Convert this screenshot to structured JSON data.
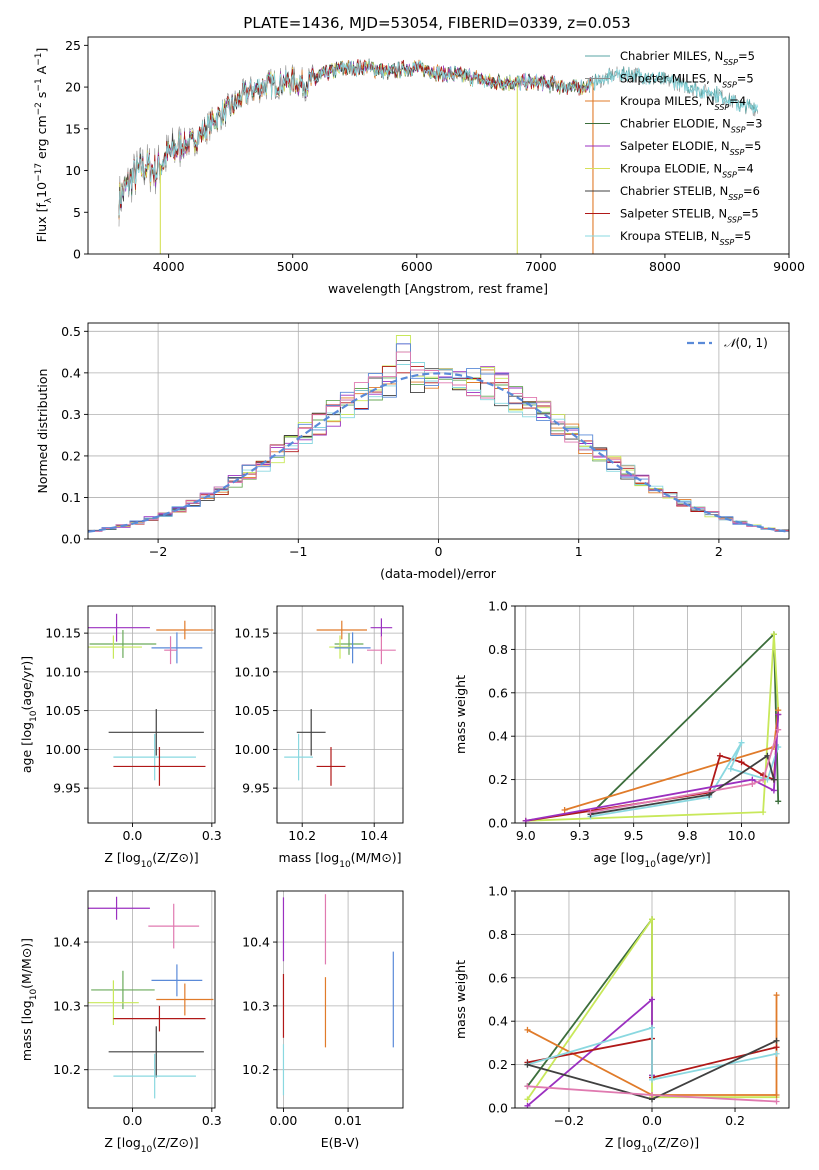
{
  "figure_title": "PLATE=1436, MJD=53054, FIBERID=0339, z=0.053",
  "colors": {
    "chabrier_miles": "#5aa5a5",
    "salpeter_miles": "#8c8c8c",
    "kroupa_miles": "#e07b2a",
    "chabrier_elodie": "#3c6e3c",
    "salpeter_elodie": "#9b30c0",
    "kroupa_elodie": "#d6e05a",
    "chabrier_stelib": "#404040",
    "salpeter_stelib": "#b01818",
    "kroupa_stelib": "#8ad8e0",
    "extra_pink": "#e07ab0",
    "extra_blue": "#5a8ad8",
    "extra_green": "#6aaa5a",
    "extra_lime": "#c8e85a",
    "normal_curve": "#5a8ad8"
  },
  "chart_data": [
    {
      "id": "spectrum",
      "type": "line",
      "title": "PLATE=1436, MJD=53054, FIBERID=0339, z=0.053",
      "xlabel": "wavelength [Angstrom, rest frame]",
      "ylabel": "Flux [fλ10⁻¹⁷ erg cm⁻² s⁻¹ A⁻¹]",
      "xlim": [
        3350,
        9000
      ],
      "ylim": [
        0,
        26
      ],
      "xticks": [
        4000,
        5000,
        6000,
        7000,
        8000,
        9000
      ],
      "yticks": [
        0,
        5,
        10,
        15,
        20,
        25
      ],
      "legend_position": "top-right",
      "series": [
        {
          "name": "Chabrier MILES, N_SSP=5",
          "label_main": "Chabrier MILES, N",
          "sub": "SSP",
          "label_tail": "=5",
          "color": "#5aa5a5"
        },
        {
          "name": "Salpeter MILES, N_SSP=5",
          "label_main": "Salpeter MILES, N",
          "sub": "SSP",
          "label_tail": "=5",
          "color": "#8c8c8c"
        },
        {
          "name": "Kroupa MILES, N_SSP=4",
          "label_main": "Kroupa MILES, N",
          "sub": "SSP",
          "label_tail": "=4",
          "color": "#e07b2a"
        },
        {
          "name": "Chabrier ELODIE, N_SSP=3",
          "label_main": "Chabrier ELODIE, N",
          "sub": "SSP",
          "label_tail": "=3",
          "color": "#3c6e3c"
        },
        {
          "name": "Salpeter ELODIE, N_SSP=5",
          "label_main": "Salpeter ELODIE, N",
          "sub": "SSP",
          "label_tail": "=5",
          "color": "#9b30c0"
        },
        {
          "name": "Kroupa ELODIE, N_SSP=4",
          "label_main": "Kroupa ELODIE, N",
          "sub": "SSP",
          "label_tail": "=4",
          "color": "#d6e05a"
        },
        {
          "name": "Chabrier STELIB, N_SSP=6",
          "label_main": "Chabrier STELIB, N",
          "sub": "SSP",
          "label_tail": "=6",
          "color": "#404040"
        },
        {
          "name": "Salpeter STELIB, N_SSP=5",
          "label_main": "Salpeter STELIB, N",
          "sub": "SSP",
          "label_tail": "=5",
          "color": "#b01818"
        },
        {
          "name": "Kroupa STELIB, N_SSP=5",
          "label_main": "Kroupa STELIB, N",
          "sub": "SSP",
          "label_tail": "=5",
          "color": "#8ad8e0"
        }
      ],
      "continuum": {
        "x": [
          3600,
          3700,
          3800,
          3900,
          4000,
          4100,
          4200,
          4300,
          4400,
          4500,
          4600,
          4700,
          4800,
          4900,
          5000,
          5100,
          5200,
          5300,
          5400,
          5500,
          5600,
          5700,
          5800,
          5900,
          6000,
          6100,
          6200,
          6300,
          6400,
          6500,
          6600,
          6700,
          6800,
          6900,
          7000,
          7100,
          7200,
          7300,
          7400,
          7500,
          7600,
          7700,
          7800,
          7900,
          8000,
          8100,
          8200,
          8300,
          8400,
          8500,
          8600,
          8700
        ],
        "y": [
          6.5,
          9.0,
          10.5,
          10.0,
          12.0,
          13.0,
          13.5,
          15.0,
          16.5,
          17.5,
          19.0,
          19.8,
          20.3,
          20.5,
          20.8,
          20.3,
          21.2,
          21.8,
          22.2,
          22.3,
          22.4,
          22.0,
          21.8,
          22.2,
          22.3,
          22.0,
          21.6,
          21.5,
          21.3,
          21.0,
          20.5,
          20.6,
          20.5,
          20.6,
          20.5,
          20.3,
          20.1,
          19.9,
          20.3,
          21.0,
          21.5,
          21.5,
          21.5,
          21.0,
          20.8,
          20.5,
          20.0,
          19.5,
          19.2,
          18.5,
          18.0,
          17.5
        ]
      },
      "dips": [
        {
          "x": 3933,
          "y": 0
        },
        {
          "x": 6810,
          "y": 20.5
        },
        {
          "x": 7420,
          "y": 0
        }
      ]
    },
    {
      "id": "residuals",
      "type": "histogram",
      "xlabel": "(data-model)/error",
      "ylabel": "Normed distribution",
      "xlim": [
        -2.5,
        2.5
      ],
      "ylim": [
        0,
        0.52
      ],
      "xticks": [
        -2,
        -1,
        0,
        1,
        2
      ],
      "yticks": [
        0.0,
        0.1,
        0.2,
        0.3,
        0.4,
        0.5
      ],
      "bin_width": 0.1,
      "normal_curve_label": "N(0, 1)",
      "legend_position": "top-right",
      "peak_values": [
        0.42,
        0.47,
        0.45,
        0.49,
        0.43,
        0.4
      ]
    },
    {
      "id": "age_vs_Z",
      "type": "errorbar",
      "xlabel": "Z [log10(Z/Z⊙)]",
      "ylabel": "age  [log10(age/yr)]",
      "xlim": [
        -0.14,
        0.26
      ],
      "ylim": [
        9.905,
        10.185
      ],
      "xticks": [
        0.0,
        0.25
      ],
      "yticks": [
        9.95,
        10.0,
        10.05,
        10.1,
        10.15
      ],
      "points": [
        {
          "x": -0.05,
          "y": 10.157,
          "xerr": 0.105,
          "yerr": 0.018,
          "color": "#9b30c0"
        },
        {
          "x": 0.165,
          "y": 10.154,
          "xerr": 0.09,
          "yerr": 0.012,
          "color": "#e07b2a"
        },
        {
          "x": -0.03,
          "y": 10.136,
          "xerr": 0.105,
          "yerr": 0.018,
          "color": "#6aaa5a"
        },
        {
          "x": -0.06,
          "y": 10.132,
          "xerr": 0.09,
          "yerr": 0.015,
          "color": "#c8e85a"
        },
        {
          "x": 0.14,
          "y": 10.131,
          "xerr": 0.08,
          "yerr": 0.02,
          "color": "#5a8ad8"
        },
        {
          "x": 0.12,
          "y": 10.128,
          "xerr": 0.02,
          "yerr": 0.018,
          "color": "#e07ab0"
        },
        {
          "x": 0.075,
          "y": 10.022,
          "xerr": 0.15,
          "yerr": 0.03,
          "color": "#404040"
        },
        {
          "x": 0.07,
          "y": 9.99,
          "xerr": 0.13,
          "yerr": 0.03,
          "color": "#8ad8e0"
        },
        {
          "x": 0.085,
          "y": 9.978,
          "xerr": 0.145,
          "yerr": 0.025,
          "color": "#b01818"
        }
      ]
    },
    {
      "id": "age_vs_mass",
      "type": "errorbar",
      "xlabel": "mass [log10(M/M⊙)]",
      "ylabel": "",
      "xlim": [
        10.13,
        10.48
      ],
      "ylim": [
        9.905,
        10.185
      ],
      "xticks": [
        10.2,
        10.4
      ],
      "yticks": [
        9.95,
        10.0,
        10.05,
        10.1,
        10.15
      ],
      "points": [
        {
          "x": 10.42,
          "y": 10.157,
          "xerr": 0.03,
          "yerr": 0.012,
          "color": "#9b30c0"
        },
        {
          "x": 10.31,
          "y": 10.154,
          "xerr": 0.07,
          "yerr": 0.012,
          "color": "#e07b2a"
        },
        {
          "x": 10.33,
          "y": 10.136,
          "xerr": 0.04,
          "yerr": 0.014,
          "color": "#6aaa5a"
        },
        {
          "x": 10.305,
          "y": 10.132,
          "xerr": 0.03,
          "yerr": 0.015,
          "color": "#c8e85a"
        },
        {
          "x": 10.34,
          "y": 10.131,
          "xerr": 0.05,
          "yerr": 0.02,
          "color": "#5a8ad8"
        },
        {
          "x": 10.42,
          "y": 10.128,
          "xerr": 0.04,
          "yerr": 0.018,
          "color": "#e07ab0"
        },
        {
          "x": 10.225,
          "y": 10.022,
          "xerr": 0.04,
          "yerr": 0.03,
          "color": "#404040"
        },
        {
          "x": 10.19,
          "y": 9.99,
          "xerr": 0.04,
          "yerr": 0.03,
          "color": "#8ad8e0"
        },
        {
          "x": 10.28,
          "y": 9.978,
          "xerr": 0.04,
          "yerr": 0.025,
          "color": "#b01818"
        }
      ]
    },
    {
      "id": "weight_vs_age",
      "type": "line",
      "xlabel": "age  [log10(age/yr)]",
      "ylabel": "mass weight",
      "xlim": [
        8.95,
        10.22
      ],
      "ylim": [
        0,
        1.0
      ],
      "xticks": [
        9.0,
        9.25,
        9.5,
        9.75,
        10.0
      ],
      "yticks": [
        0.0,
        0.2,
        0.4,
        0.6,
        0.8,
        1.0
      ],
      "series": [
        {
          "color": "#3c6e3c",
          "x": [
            9.3,
            10.15,
            10.17
          ],
          "y": [
            0.04,
            0.87,
            0.1
          ]
        },
        {
          "color": "#c8e85a",
          "x": [
            9.0,
            10.1,
            10.15,
            10.17
          ],
          "y": [
            0.01,
            0.05,
            0.87,
            0.52
          ]
        },
        {
          "color": "#e07b2a",
          "x": [
            9.18,
            10.15,
            10.17
          ],
          "y": [
            0.06,
            0.35,
            0.52
          ]
        },
        {
          "color": "#b01818",
          "x": [
            9.0,
            9.85,
            9.9,
            10.0,
            10.1,
            10.15,
            10.17
          ],
          "y": [
            0.01,
            0.14,
            0.31,
            0.28,
            0.22,
            0.2,
            0.5
          ]
        },
        {
          "color": "#8ad8e0",
          "x": [
            9.3,
            9.85,
            10.0,
            9.95,
            10.12,
            10.17
          ],
          "y": [
            0.03,
            0.12,
            0.37,
            0.25,
            0.2,
            0.35
          ]
        },
        {
          "color": "#9b30c0",
          "x": [
            9.0,
            10.05,
            10.15,
            10.17
          ],
          "y": [
            0.01,
            0.2,
            0.15,
            0.5
          ]
        },
        {
          "color": "#404040",
          "x": [
            9.3,
            9.85,
            10.12,
            10.15
          ],
          "y": [
            0.04,
            0.13,
            0.31,
            0.2
          ]
        },
        {
          "color": "#e07ab0",
          "x": [
            9.3,
            10.05,
            10.1,
            10.17
          ],
          "y": [
            0.05,
            0.18,
            0.2,
            0.43
          ]
        }
      ]
    },
    {
      "id": "mass_vs_Z",
      "type": "errorbar",
      "xlabel": "Z [log10(Z/Z⊙)]",
      "ylabel": "mass [log10(M/M⊙)]",
      "xlim": [
        -0.14,
        0.26
      ],
      "ylim": [
        10.14,
        10.48
      ],
      "xticks": [
        0.0,
        0.25
      ],
      "yticks": [
        10.2,
        10.3,
        10.4
      ],
      "points": [
        {
          "x": -0.05,
          "y": 10.453,
          "xerr": 0.105,
          "yerr": 0.018,
          "color": "#9b30c0"
        },
        {
          "x": 0.13,
          "y": 10.425,
          "xerr": 0.08,
          "yerr": 0.035,
          "color": "#e07ab0"
        },
        {
          "x": 0.14,
          "y": 10.34,
          "xerr": 0.08,
          "yerr": 0.025,
          "color": "#5a8ad8"
        },
        {
          "x": -0.03,
          "y": 10.325,
          "xerr": 0.1,
          "yerr": 0.03,
          "color": "#6aaa5a"
        },
        {
          "x": 0.165,
          "y": 10.31,
          "xerr": 0.09,
          "yerr": 0.025,
          "color": "#e07b2a"
        },
        {
          "x": -0.06,
          "y": 10.305,
          "xerr": 0.08,
          "yerr": 0.035,
          "color": "#c8e85a"
        },
        {
          "x": 0.085,
          "y": 10.28,
          "xerr": 0.145,
          "yerr": 0.02,
          "color": "#b01818"
        },
        {
          "x": 0.075,
          "y": 10.228,
          "xerr": 0.15,
          "yerr": 0.04,
          "color": "#404040"
        },
        {
          "x": 0.07,
          "y": 10.19,
          "xerr": 0.13,
          "yerr": 0.035,
          "color": "#8ad8e0"
        }
      ]
    },
    {
      "id": "mass_vs_ebv",
      "type": "errorbar",
      "xlabel": "E(B-V)",
      "ylabel": "",
      "xlim": [
        -0.001,
        0.0185
      ],
      "ylim": [
        10.14,
        10.48
      ],
      "xticks": [
        0.0,
        0.01
      ],
      "yticks": [
        10.2,
        10.3,
        10.4
      ],
      "points": [
        {
          "x": 0.0,
          "y": 10.42,
          "xerr": 0,
          "yerr": 0.05,
          "color": "#9b30c0"
        },
        {
          "x": 0.0,
          "y": 10.3,
          "xerr": 0,
          "yerr": 0.05,
          "color": "#b01818"
        },
        {
          "x": 0.0,
          "y": 10.2,
          "xerr": 0,
          "yerr": 0.04,
          "color": "#8ad8e0"
        },
        {
          "x": 0.0065,
          "y": 10.42,
          "xerr": 0,
          "yerr": 0.055,
          "color": "#e07ab0"
        },
        {
          "x": 0.0065,
          "y": 10.29,
          "xerr": 0,
          "yerr": 0.055,
          "color": "#e07b2a"
        },
        {
          "x": 0.017,
          "y": 10.31,
          "xerr": 0,
          "yerr": 0.075,
          "color": "#5a8ad8"
        }
      ]
    },
    {
      "id": "weight_vs_Z",
      "type": "line",
      "xlabel": "Z [log10(Z/Z⊙)]",
      "ylabel": "mass weight",
      "xlim": [
        -0.33,
        0.33
      ],
      "ylim": [
        0,
        1.0
      ],
      "xticks": [
        -0.2,
        0.0,
        0.2
      ],
      "yticks": [
        0.0,
        0.2,
        0.4,
        0.6,
        0.8,
        1.0
      ],
      "series": [
        {
          "color": "#3c6e3c",
          "x": [
            -0.3,
            0.0,
            0.0
          ],
          "y": [
            0.1,
            0.87,
            0.15
          ]
        },
        {
          "color": "#c8e85a",
          "x": [
            -0.3,
            0.0,
            0.0,
            0.3
          ],
          "y": [
            0.04,
            0.87,
            0.05,
            0.05
          ]
        },
        {
          "color": "#e07b2a",
          "x": [
            -0.3,
            0.0,
            0.3,
            0.3
          ],
          "y": [
            0.36,
            0.06,
            0.06,
            0.52
          ]
        },
        {
          "color": "#9b30c0",
          "x": [
            -0.3,
            0.0,
            0.0
          ],
          "y": [
            0.01,
            0.5,
            0.15
          ]
        },
        {
          "color": "#b01818",
          "x": [
            -0.3,
            0.0,
            0.0,
            0.3
          ],
          "y": [
            0.21,
            0.32,
            0.14,
            0.28
          ]
        },
        {
          "color": "#8ad8e0",
          "x": [
            -0.3,
            0.0,
            0.0,
            0.3
          ],
          "y": [
            0.2,
            0.37,
            0.13,
            0.25
          ]
        },
        {
          "color": "#404040",
          "x": [
            -0.3,
            0.0,
            0.3
          ],
          "y": [
            0.2,
            0.04,
            0.31
          ]
        },
        {
          "color": "#e07ab0",
          "x": [
            -0.3,
            0.0,
            0.3
          ],
          "y": [
            0.1,
            0.06,
            0.03
          ]
        }
      ]
    }
  ]
}
